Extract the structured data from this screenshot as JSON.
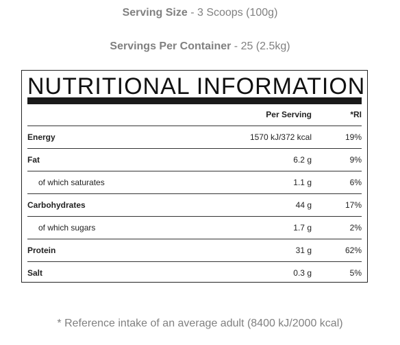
{
  "serving_size": {
    "label": "Serving Size",
    "value": " - 3 Scoops (100g)"
  },
  "servings_per_container": {
    "label": "Servings Per Container",
    "value": " - 25 (2.5kg)"
  },
  "panel": {
    "title": "NUTRITIONAL INFORMATION",
    "col_per_serving": "Per Serving",
    "col_ri": "*RI"
  },
  "rows": [
    {
      "name": "Energy",
      "per_serving": "1570 kJ/372 kcal",
      "ri": "19%"
    },
    {
      "name": "Fat",
      "per_serving": "6.2 g",
      "ri": "9%"
    },
    {
      "name": "of which saturates",
      "per_serving": "1.1 g",
      "ri": "6%"
    },
    {
      "name": "Carbohydrates",
      "per_serving": "44 g",
      "ri": "17%"
    },
    {
      "name": "of which sugars",
      "per_serving": "1.7 g",
      "ri": "2%"
    },
    {
      "name": "Protein",
      "per_serving": "31 g",
      "ri": "62%"
    },
    {
      "name": "Salt",
      "per_serving": "0.3 g",
      "ri": "5%"
    }
  ],
  "footnote": "* Reference intake of an average adult (8400 kJ/2000 kcal)"
}
